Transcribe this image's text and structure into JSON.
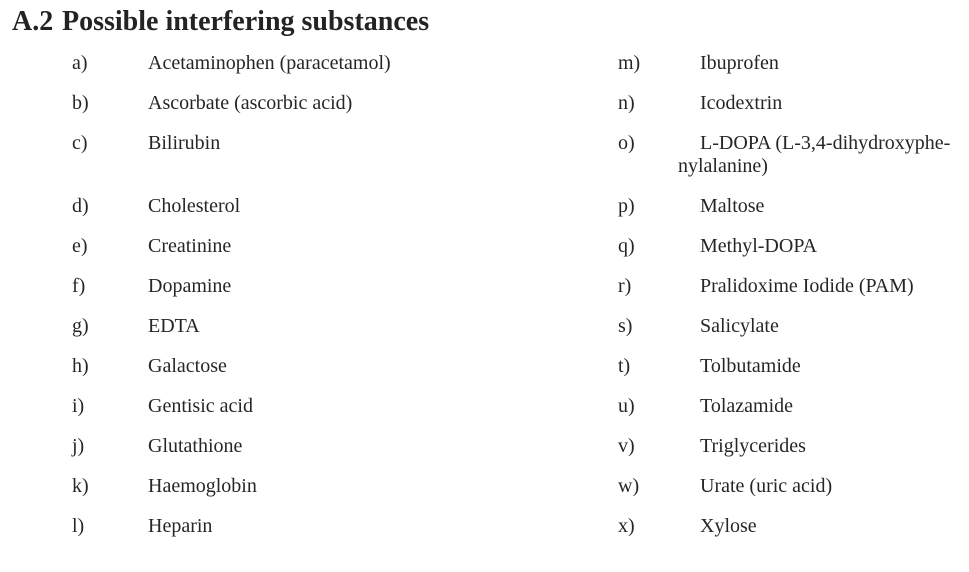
{
  "heading": {
    "number": "A.2",
    "title": "Possible interfering substances"
  },
  "text_color": "#262626",
  "background_color": "#ffffff",
  "rows": [
    {
      "left": {
        "label": "a)",
        "text": "Acetaminophen (paracetamol)"
      },
      "right": {
        "label": "m)",
        "text": "Ibuprofen"
      }
    },
    {
      "left": {
        "label": "b)",
        "text": "Ascorbate (ascorbic acid)"
      },
      "right": {
        "label": "n)",
        "text": "Icodextrin"
      }
    },
    {
      "left": {
        "label": "c)",
        "text": "Bilirubin"
      },
      "right": {
        "label": "o)",
        "text": "L-DOPA (L-3,4-dihydroxyphe-\nnylalanine)"
      }
    },
    {
      "left": {
        "label": "d)",
        "text": "Cholesterol"
      },
      "right": {
        "label": "p)",
        "text": "Maltose"
      }
    },
    {
      "left": {
        "label": "e)",
        "text": "Creatinine"
      },
      "right": {
        "label": "q)",
        "text": "Methyl-DOPA"
      }
    },
    {
      "left": {
        "label": "f)",
        "text": "Dopamine"
      },
      "right": {
        "label": "r)",
        "text": "Pralidoxime Iodide (PAM)"
      }
    },
    {
      "left": {
        "label": "g)",
        "text": "EDTA"
      },
      "right": {
        "label": "s)",
        "text": "Salicylate"
      }
    },
    {
      "left": {
        "label": "h)",
        "text": "Galactose"
      },
      "right": {
        "label": "t)",
        "text": "Tolbutamide"
      }
    },
    {
      "left": {
        "label": "i)",
        "text": "Gentisic acid"
      },
      "right": {
        "label": "u)",
        "text": "Tolazamide"
      }
    },
    {
      "left": {
        "label": "j)",
        "text": "Glutathione"
      },
      "right": {
        "label": "v)",
        "text": "Triglycerides"
      }
    },
    {
      "left": {
        "label": "k)",
        "text": "Haemoglobin"
      },
      "right": {
        "label": "w)",
        "text": "Urate (uric acid)"
      }
    },
    {
      "left": {
        "label": "l)",
        "text": "Heparin"
      },
      "right": {
        "label": "x)",
        "text": "Xylose"
      }
    }
  ]
}
